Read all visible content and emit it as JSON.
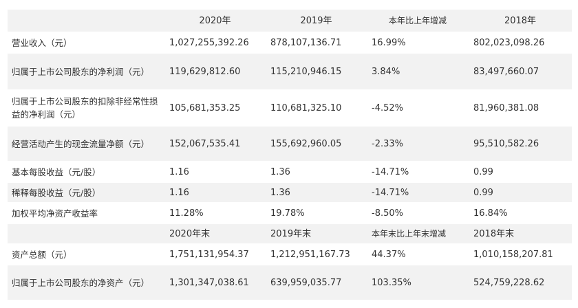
{
  "header": {
    "label": "",
    "col1": "2020年",
    "col2": "2019年",
    "col3": "本年比上年增减",
    "col4": "2018年"
  },
  "rows_top": [
    {
      "label": "营业收入（元）",
      "v2020": "1,027,255,392.26",
      "v2019": "878,107,136.71",
      "change": "16.99%",
      "v2018": "802,023,098.26"
    },
    {
      "label": "归属于上市公司股东的净利润（元）",
      "v2020": "119,629,812.60",
      "v2019": "115,210,946.15",
      "change": "3.84%",
      "v2018": "83,497,660.07"
    },
    {
      "label": "归属于上市公司股东的扣除非经常性损益的净利润（元）",
      "v2020": "105,681,353.25",
      "v2019": "110,681,325.10",
      "change": "-4.52%",
      "v2018": "81,960,381.08"
    },
    {
      "label": "经营活动产生的现金流量净额（元）",
      "v2020": "152,067,535.41",
      "v2019": "155,692,960.05",
      "change": "-2.33%",
      "v2018": "95,510,582.26"
    },
    {
      "label": "基本每股收益（元/股）",
      "v2020": "1.16",
      "v2019": "1.36",
      "change": "-14.71%",
      "v2018": "0.99"
    },
    {
      "label": "稀释每股收益（元/股）",
      "v2020": "1.16",
      "v2019": "1.36",
      "change": "-14.71%",
      "v2018": "0.99"
    },
    {
      "label": "加权平均净资产收益率",
      "v2020": "11.28%",
      "v2019": "19.78%",
      "change": "-8.50%",
      "v2018": "16.84%"
    }
  ],
  "subheader": {
    "label": "",
    "col1": "2020年末",
    "col2": "2019年末",
    "col3": "本年末比上年末增减",
    "col4": "2018年末"
  },
  "rows_bottom": [
    {
      "label": "资产总额（元）",
      "v2020": "1,751,131,954.37",
      "v2019": "1,212,951,167.73",
      "change": "44.37%",
      "v2018": "1,010,158,207.81"
    },
    {
      "label": "归属于上市公司股东的净资产（元）",
      "v2020": "1,301,347,038.61",
      "v2019": "639,959,035.77",
      "change": "103.35%",
      "v2018": "524,759,228.62"
    }
  ]
}
